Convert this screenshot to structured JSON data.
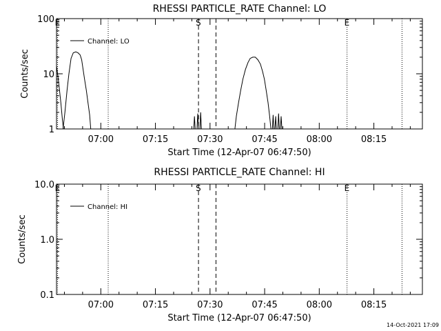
{
  "chart_data": [
    {
      "type": "line",
      "title": "RHESSI PARTICLE_RATE Channel: LO",
      "xlabel": "Start Time (12-Apr-07 06:47:50)",
      "ylabel": "Counts/sec",
      "yscale": "log",
      "ylim": [
        1,
        100
      ],
      "xlim_minutes": [
        0,
        100.5
      ],
      "ytick_values": [
        1,
        10,
        100
      ],
      "ytick_labels": [
        "1",
        "10",
        "100"
      ],
      "xtick_minutes": [
        12.17,
        27.17,
        42.17,
        57.17,
        72.17,
        87.17
      ],
      "xtick_labels": [
        "07:00",
        "07:15",
        "07:30",
        "07:45",
        "08:00",
        "08:15"
      ],
      "legend": "Channel: LO",
      "legend_position": "top-left",
      "markers": [
        {
          "label": "E",
          "minute": 0.3,
          "style": "dotted"
        },
        {
          "label": "",
          "minute": 14.2,
          "style": "dotted"
        },
        {
          "label": "S",
          "minute": 39.0,
          "style": "dashed"
        },
        {
          "label": "",
          "minute": 43.8,
          "style": "dashed"
        },
        {
          "label": "E",
          "minute": 79.8,
          "style": "dotted"
        },
        {
          "label": "",
          "minute": 94.9,
          "style": "dotted"
        }
      ],
      "series": [
        {
          "name": "Channel: LO",
          "segments": [
            [
              [
                0,
                14
              ],
              [
                0.5,
                8
              ],
              [
                1.2,
                3
              ],
              [
                1.6,
                1.5
              ],
              [
                1.9,
                1
              ]
            ],
            [
              [
                1.8,
                1
              ],
              [
                2.3,
                2
              ],
              [
                2.9,
                5
              ],
              [
                3.4,
                10
              ],
              [
                4.0,
                19
              ],
              [
                4.6,
                24
              ],
              [
                5.3,
                25
              ],
              [
                5.9,
                24
              ],
              [
                6.5,
                22
              ],
              [
                6.9,
                18
              ],
              [
                7.3,
                12
              ],
              [
                7.7,
                8
              ],
              [
                8.2,
                5
              ],
              [
                8.7,
                2.8
              ],
              [
                9.1,
                1.8
              ],
              [
                9.4,
                1
              ]
            ],
            [
              [
                37.7,
                1
              ],
              [
                37.9,
                1.7
              ],
              [
                38.1,
                1
              ]
            ],
            [
              [
                38.6,
                1
              ],
              [
                38.8,
                1.9
              ],
              [
                39.0,
                1
              ]
            ],
            [
              [
                39.4,
                1
              ],
              [
                39.6,
                2
              ],
              [
                39.8,
                1
              ]
            ],
            [
              [
                49.0,
                1
              ],
              [
                49.4,
                1.7
              ],
              [
                50.0,
                3
              ],
              [
                50.6,
                5
              ],
              [
                51.2,
                8
              ],
              [
                51.9,
                12
              ],
              [
                52.6,
                16
              ],
              [
                53.2,
                19
              ],
              [
                53.9,
                20
              ],
              [
                54.6,
                20
              ],
              [
                55.3,
                18
              ],
              [
                56.0,
                15
              ],
              [
                56.6,
                11
              ],
              [
                57.1,
                8
              ],
              [
                57.6,
                5
              ],
              [
                58.1,
                3
              ],
              [
                58.5,
                1.8
              ],
              [
                58.9,
                1
              ]
            ],
            [
              [
                59.3,
                1
              ],
              [
                59.5,
                1.8
              ],
              [
                59.7,
                1
              ]
            ],
            [
              [
                60.0,
                1
              ],
              [
                60.2,
                1.7
              ],
              [
                60.4,
                1
              ]
            ],
            [
              [
                60.8,
                1
              ],
              [
                61.0,
                1.9
              ],
              [
                61.2,
                1
              ]
            ],
            [
              [
                61.5,
                1
              ],
              [
                61.7,
                1.7
              ],
              [
                61.9,
                1
              ]
            ]
          ]
        }
      ]
    },
    {
      "type": "line",
      "title": "RHESSI PARTICLE_RATE Channel: HI",
      "xlabel": "Start Time (12-Apr-07 06:47:50)",
      "ylabel": "Counts/sec",
      "yscale": "log",
      "ylim": [
        0.1,
        10
      ],
      "xlim_minutes": [
        0,
        100.5
      ],
      "ytick_values": [
        0.1,
        1,
        10
      ],
      "ytick_labels": [
        "0.1",
        "1.0",
        "10.0"
      ],
      "xtick_minutes": [
        12.17,
        27.17,
        42.17,
        57.17,
        72.17,
        87.17
      ],
      "xtick_labels": [
        "07:00",
        "07:15",
        "07:30",
        "07:45",
        "08:00",
        "08:15"
      ],
      "legend": "Channel: HI",
      "legend_position": "top-left",
      "markers": [
        {
          "label": "E",
          "minute": 0.3,
          "style": "dotted"
        },
        {
          "label": "",
          "minute": 14.2,
          "style": "dotted"
        },
        {
          "label": "S",
          "minute": 39.0,
          "style": "dashed"
        },
        {
          "label": "",
          "minute": 43.8,
          "style": "dashed"
        },
        {
          "label": "E",
          "minute": 79.8,
          "style": "dotted"
        },
        {
          "label": "",
          "minute": 94.9,
          "style": "dotted"
        }
      ],
      "series": [
        {
          "name": "Channel: HI",
          "segments": []
        }
      ]
    }
  ],
  "footer": {
    "timestamp": "14-Oct-2021 17:09"
  }
}
